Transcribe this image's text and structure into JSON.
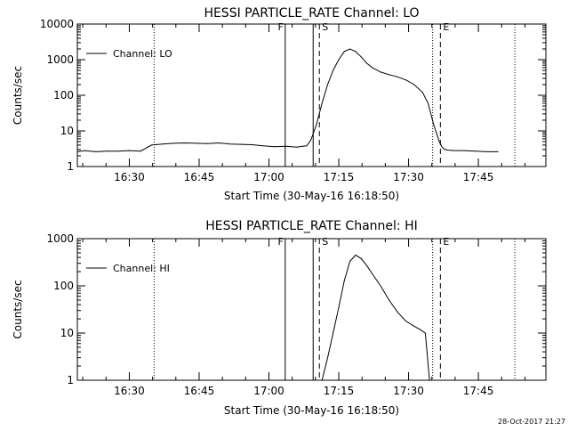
{
  "footer_timestamp": "28-Oct-2017 21:27",
  "chart_data": [
    {
      "type": "line",
      "title": "HESSI PARTICLE_RATE Channel: LO",
      "xlabel": "Start Time (30-May-16 16:18:50)",
      "ylabel": "Counts/sec",
      "yscale": "log",
      "grid": false,
      "legend_position": "top-left",
      "xlim": [
        16.3139,
        17.9917
      ],
      "ylim": [
        1,
        10000
      ],
      "xticks": [
        {
          "label": "16:30",
          "value": 16.5
        },
        {
          "label": "16:45",
          "value": 16.75
        },
        {
          "label": "17:00",
          "value": 17.0
        },
        {
          "label": "17:15",
          "value": 17.25
        },
        {
          "label": "17:30",
          "value": 17.5
        },
        {
          "label": "17:45",
          "value": 17.75
        }
      ],
      "yticks": [
        {
          "label": "1",
          "value": 1
        },
        {
          "label": "10",
          "value": 10
        },
        {
          "label": "100",
          "value": 100
        },
        {
          "label": "1000",
          "value": 1000
        },
        {
          "label": "10000",
          "value": 10000
        }
      ],
      "series": [
        {
          "name": "Channel: LO",
          "x": [
            16.3139,
            16.34,
            16.38,
            16.42,
            16.46,
            16.5,
            16.54,
            16.58,
            16.62,
            16.66,
            16.7,
            16.74,
            16.78,
            16.82,
            16.86,
            16.9,
            16.94,
            16.98,
            17.02,
            17.06,
            17.1,
            17.12,
            17.135,
            17.15,
            17.17,
            17.19,
            17.21,
            17.23,
            17.25,
            17.27,
            17.29,
            17.31,
            17.33,
            17.35,
            17.37,
            17.4,
            17.43,
            17.46,
            17.49,
            17.52,
            17.55,
            17.57,
            17.59,
            17.61,
            17.62,
            17.63,
            17.64,
            17.66,
            17.7,
            17.74,
            17.78,
            17.82
          ],
          "y": [
            2.6,
            2.8,
            2.6,
            2.7,
            2.7,
            2.8,
            2.7,
            4.0,
            4.3,
            4.5,
            4.6,
            4.5,
            4.4,
            4.6,
            4.3,
            4.2,
            4.1,
            3.8,
            3.6,
            3.7,
            3.5,
            3.7,
            3.8,
            5.5,
            15,
            60,
            200,
            500,
            1000,
            1700,
            2000,
            1700,
            1200,
            800,
            600,
            450,
            380,
            330,
            270,
            200,
            120,
            60,
            15,
            5,
            3.5,
            3.0,
            2.9,
            2.8,
            2.8,
            2.7,
            2.6,
            2.6
          ]
        }
      ],
      "annotations": [
        {
          "label": "F",
          "style": "solid",
          "x": 17.0583
        },
        {
          "label": "",
          "style": "solid",
          "x": 17.1583
        },
        {
          "label": "S",
          "style": "dashed",
          "x": 17.1806
        },
        {
          "label": "E",
          "style": "dashed",
          "x": 17.6139
        },
        {
          "label": "",
          "style": "dotted",
          "x": 16.5889
        },
        {
          "label": "",
          "style": "dotted",
          "x": 17.5861
        },
        {
          "label": "",
          "style": "dotted",
          "x": 17.8806
        }
      ]
    },
    {
      "type": "line",
      "title": "HESSI PARTICLE_RATE Channel: HI",
      "xlabel": "Start Time (30-May-16 16:18:50)",
      "ylabel": "Counts/sec",
      "yscale": "log",
      "grid": false,
      "legend_position": "top-left",
      "xlim": [
        16.3139,
        17.9917
      ],
      "ylim": [
        1,
        1000
      ],
      "xticks": [
        {
          "label": "16:30",
          "value": 16.5
        },
        {
          "label": "16:45",
          "value": 16.75
        },
        {
          "label": "17:00",
          "value": 17.0
        },
        {
          "label": "17:15",
          "value": 17.25
        },
        {
          "label": "17:30",
          "value": 17.5
        },
        {
          "label": "17:45",
          "value": 17.75
        }
      ],
      "yticks": [
        {
          "label": "1",
          "value": 1
        },
        {
          "label": "10",
          "value": 10
        },
        {
          "label": "100",
          "value": 100
        },
        {
          "label": "1000",
          "value": 1000
        }
      ],
      "series": [
        {
          "name": "Channel: HI",
          "x": [
            17.19,
            17.21,
            17.23,
            17.25,
            17.27,
            17.29,
            17.31,
            17.33,
            17.35,
            17.37,
            17.4,
            17.43,
            17.46,
            17.49,
            17.52,
            17.54,
            17.56,
            17.575
          ],
          "y": [
            1,
            3,
            10,
            35,
            130,
            330,
            450,
            380,
            270,
            180,
            100,
            50,
            28,
            18,
            14,
            12,
            10,
            1
          ]
        }
      ],
      "annotations": [
        {
          "label": "F",
          "style": "solid",
          "x": 17.0583
        },
        {
          "label": "",
          "style": "solid",
          "x": 17.1583
        },
        {
          "label": "S",
          "style": "dashed",
          "x": 17.1806
        },
        {
          "label": "E",
          "style": "dashed",
          "x": 17.6139
        },
        {
          "label": "",
          "style": "dotted",
          "x": 16.5889
        },
        {
          "label": "",
          "style": "dotted",
          "x": 17.5861
        },
        {
          "label": "",
          "style": "dotted",
          "x": 17.8806
        }
      ]
    }
  ]
}
